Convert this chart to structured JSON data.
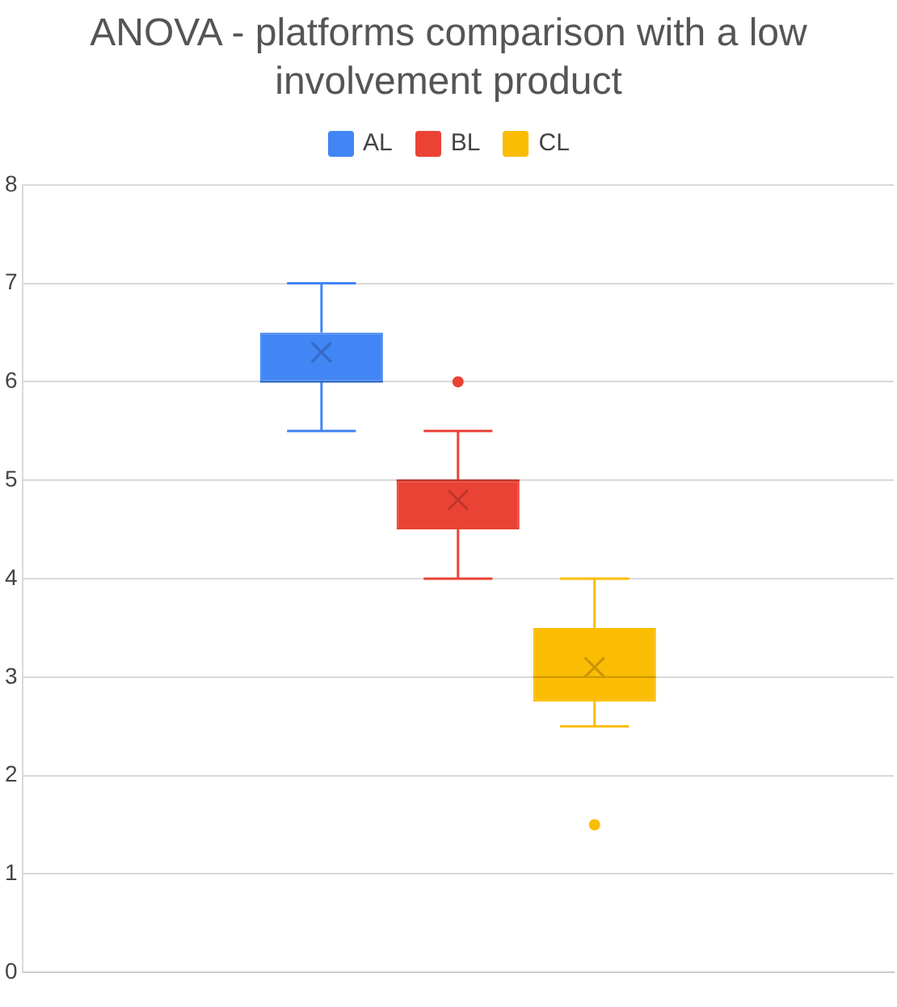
{
  "chart_data": {
    "type": "box",
    "title": "ANOVA - platforms comparison with a low involvement product",
    "categories": [
      null
    ],
    "series": [
      {
        "name": "AL",
        "color": "#4285f4",
        "boxes": [
          {
            "low": 5.5,
            "q1": 6,
            "median": 6,
            "q3": 6.5,
            "high": 7,
            "mean": 6.3
          }
        ]
      },
      {
        "name": "BL",
        "color": "#ea4335",
        "boxes": [
          {
            "low": 4,
            "q1": 4.5,
            "median": 5,
            "q3": 5,
            "high": 5.5,
            "mean": 4.8,
            "outliers": [
              6
            ]
          }
        ]
      },
      {
        "name": "CL",
        "color": "#fbbc04",
        "boxes": [
          {
            "low": 2.5,
            "q1": 2.75,
            "median": 3,
            "q3": 3.5,
            "high": 4,
            "mean": 3.1,
            "outliers": [
              1.5
            ]
          }
        ]
      }
    ],
    "ylim": [
      0,
      8
    ],
    "yticks": [
      0,
      1,
      2,
      3,
      4,
      5,
      6,
      7,
      8
    ],
    "grid": "y",
    "legend": "top",
    "tick_labels": "y"
  }
}
